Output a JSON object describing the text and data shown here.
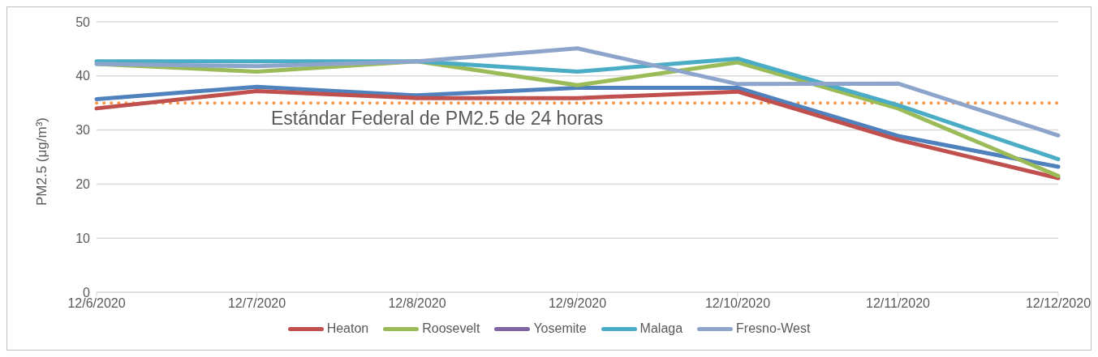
{
  "chart_data": {
    "type": "line",
    "ylabel": "PM2.5 (μg/m³)",
    "categories": [
      "12/6/2020",
      "12/7/2020",
      "12/8/2020",
      "12/9/2020",
      "12/10/2020",
      "12/11/2020",
      "12/12/2020"
    ],
    "series": [
      {
        "color": "#4f81bd",
        "values": [
          35.7,
          38.0,
          36.4,
          37.8,
          37.8,
          28.9,
          23.2
        ]
      },
      {
        "name": "Heaton",
        "color": "#c0504d",
        "values": [
          34.0,
          37.2,
          35.9,
          35.9,
          37.1,
          28.2,
          21.1
        ]
      },
      {
        "name": "Roosevelt",
        "color": "#9bbb59",
        "values": [
          42.2,
          40.8,
          42.7,
          38.3,
          42.5,
          34.0,
          21.5
        ]
      },
      {
        "name": "Yosemite",
        "color": "#8064a2",
        "values": [
          null,
          null,
          null,
          null,
          null,
          null,
          null
        ]
      },
      {
        "name": "Malaga",
        "color": "#4bacc6",
        "values": [
          42.7,
          42.7,
          42.7,
          40.8,
          43.2,
          34.6,
          24.6
        ]
      },
      {
        "name": "Fresno-West",
        "color": "#8ea5cb",
        "values": [
          42.2,
          41.8,
          42.7,
          45.1,
          38.5,
          38.6,
          29.0
        ]
      }
    ],
    "ylim": [
      0,
      50
    ],
    "yticks": [
      0,
      10,
      20,
      30,
      40,
      50
    ],
    "grid": "y",
    "legend": "bottom",
    "marker": "none",
    "line_style": "solid",
    "ref_lines": [
      {
        "axis": "y",
        "value": 35,
        "label": "Estándar Federal de PM2.5 de 24 horas",
        "color": "#f79646",
        "line_style": "dotted"
      }
    ]
  }
}
